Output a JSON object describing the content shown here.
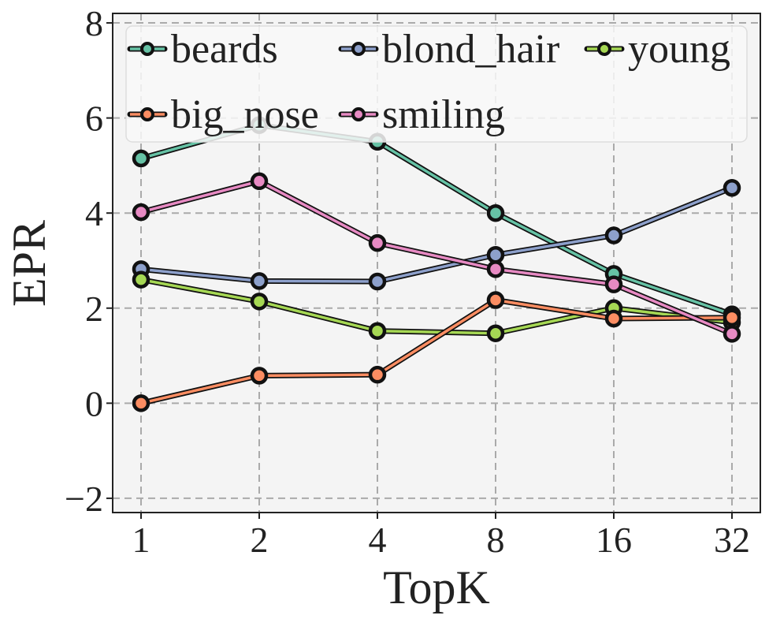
{
  "chart_data": {
    "type": "line",
    "xlabel": "TopK",
    "ylabel": "EPR",
    "x": [
      1,
      2,
      4,
      8,
      16,
      32
    ],
    "x_tick_labels": [
      "1",
      "2",
      "4",
      "8",
      "16",
      "32"
    ],
    "x_scale": "log2",
    "ylim": [
      -2.3,
      8.2
    ],
    "y_ticks": [
      -2,
      0,
      2,
      4,
      6,
      8
    ],
    "y_tick_labels": [
      "−2",
      "0",
      "2",
      "4",
      "6",
      "8"
    ],
    "grid": true,
    "legend_position": "top",
    "series": [
      {
        "name": "beards",
        "color": "#66c2a5",
        "values": [
          5.15,
          5.85,
          5.5,
          4.0,
          2.72,
          1.87
        ]
      },
      {
        "name": "blond_hair",
        "color": "#8da0cb",
        "values": [
          2.82,
          2.57,
          2.56,
          3.12,
          3.53,
          4.53
        ]
      },
      {
        "name": "young",
        "color": "#a6d854",
        "values": [
          2.6,
          2.14,
          1.52,
          1.47,
          2.0,
          1.7
        ]
      },
      {
        "name": "big_nose",
        "color": "#fc8d62",
        "values": [
          0.0,
          0.58,
          0.6,
          2.17,
          1.78,
          1.8
        ]
      },
      {
        "name": "smiling",
        "color": "#e78ac3",
        "values": [
          4.02,
          4.67,
          3.37,
          2.82,
          2.5,
          1.46
        ]
      }
    ]
  }
}
